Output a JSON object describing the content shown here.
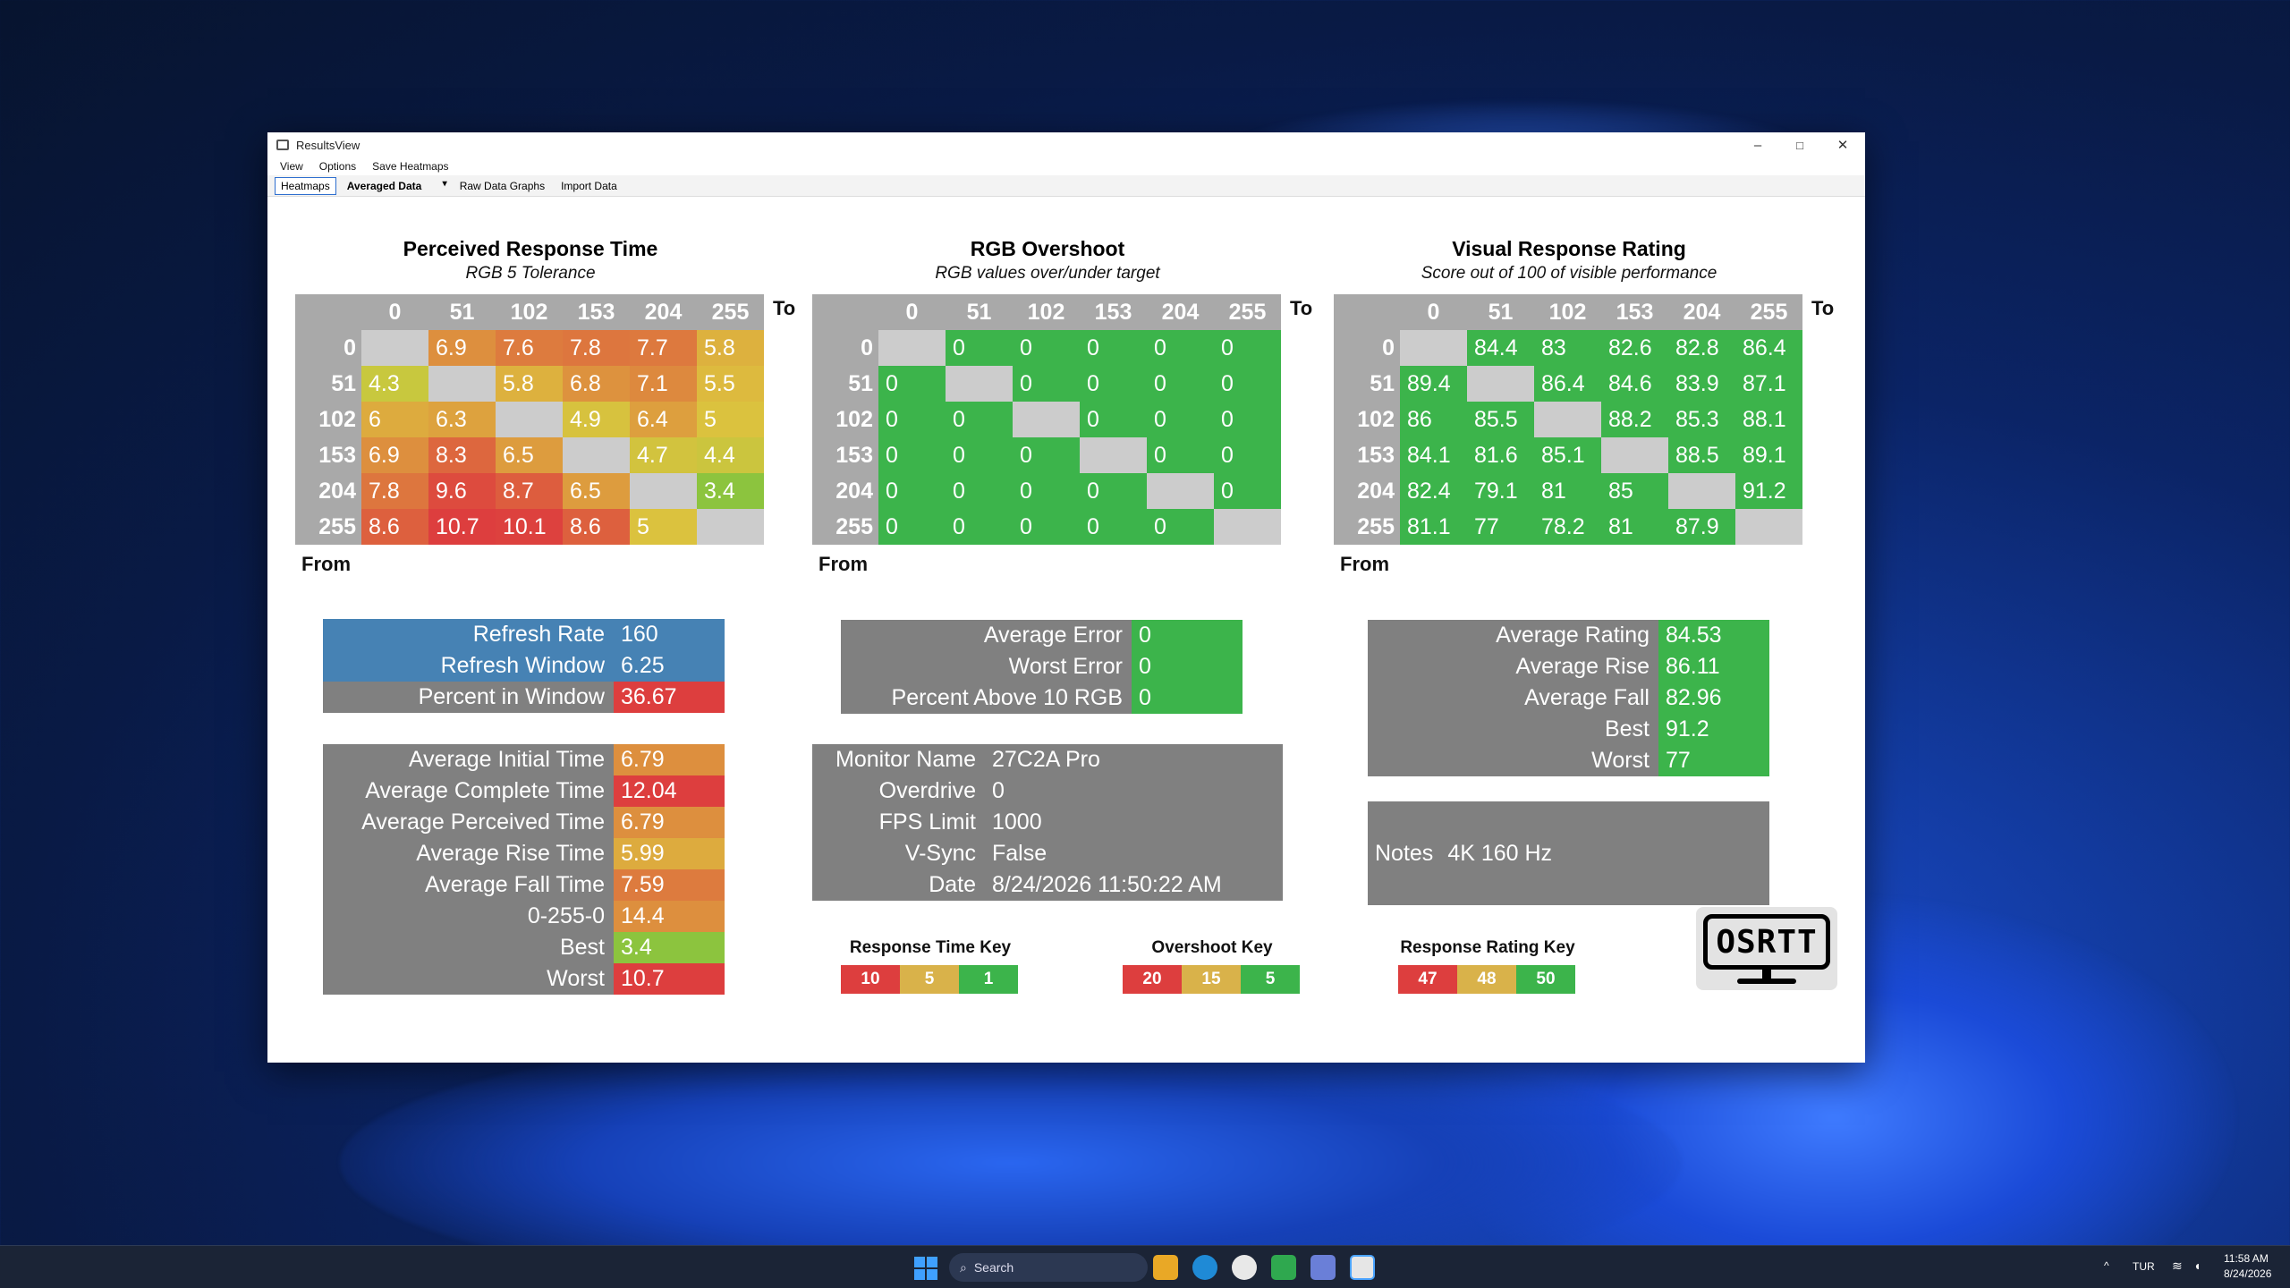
{
  "window": {
    "title": "ResultsView",
    "minimize": "–",
    "maximize": "□",
    "close": "✕"
  },
  "menu": [
    "View",
    "Options",
    "Save Heatmaps"
  ],
  "tabs": {
    "heatmaps": "Heatmaps",
    "dropdown_value": "Averaged Data",
    "raw": "Raw Data Graphs",
    "import": "Import Data"
  },
  "axis_labels": {
    "to": "To",
    "from": "From"
  },
  "heatmaps": [
    {
      "title": "Perceived Response Time",
      "subtitle": "RGB 5 Tolerance",
      "cols": [
        "0",
        "51",
        "102",
        "153",
        "204",
        "255"
      ],
      "rows": [
        {
          "label": "0",
          "cells": [
            {
              "t": "",
              "c": "#cccccc"
            },
            {
              "t": "6.9",
              "c": "#dd8f3e"
            },
            {
              "t": "7.6",
              "c": "#dd7b3e"
            },
            {
              "t": "7.8",
              "c": "#dd763e"
            },
            {
              "t": "7.7",
              "c": "#dd793e"
            },
            {
              "t": "5.8",
              "c": "#ddb13e"
            }
          ]
        },
        {
          "label": "51",
          "cells": [
            {
              "t": "4.3",
              "c": "#c8c83e"
            },
            {
              "t": "",
              "c": "#cccccc"
            },
            {
              "t": "5.8",
              "c": "#ddb13e"
            },
            {
              "t": "6.8",
              "c": "#dd923e"
            },
            {
              "t": "7.1",
              "c": "#dd893e"
            },
            {
              "t": "5.5",
              "c": "#ddba3e"
            }
          ]
        },
        {
          "label": "102",
          "cells": [
            {
              "t": "6",
              "c": "#ddab3e"
            },
            {
              "t": "6.3",
              "c": "#dda23e"
            },
            {
              "t": "",
              "c": "#cccccc"
            },
            {
              "t": "4.9",
              "c": "#d7c23e"
            },
            {
              "t": "6.4",
              "c": "#dd9f3e"
            },
            {
              "t": "5",
              "c": "#dbc23e"
            }
          ]
        },
        {
          "label": "153",
          "cells": [
            {
              "t": "6.9",
              "c": "#dd8f3e"
            },
            {
              "t": "8.3",
              "c": "#dd673e"
            },
            {
              "t": "6.5",
              "c": "#dd9c3e"
            },
            {
              "t": "",
              "c": "#cccccc"
            },
            {
              "t": "4.7",
              "c": "#d2c33e"
            },
            {
              "t": "4.4",
              "c": "#cbc53e"
            }
          ]
        },
        {
          "label": "204",
          "cells": [
            {
              "t": "7.8",
              "c": "#dd763e"
            },
            {
              "t": "9.6",
              "c": "#dd4b3e"
            },
            {
              "t": "8.7",
              "c": "#dd5d3e"
            },
            {
              "t": "6.5",
              "c": "#dd9c3e"
            },
            {
              "t": "",
              "c": "#cccccc"
            },
            {
              "t": "3.4",
              "c": "#8cc43e"
            }
          ]
        },
        {
          "label": "255",
          "cells": [
            {
              "t": "8.6",
              "c": "#dd603e"
            },
            {
              "t": "10.7",
              "c": "#dd3e3e"
            },
            {
              "t": "10.1",
              "c": "#dd413e"
            },
            {
              "t": "8.6",
              "c": "#dd603e"
            },
            {
              "t": "5",
              "c": "#dbc23e"
            },
            {
              "t": "",
              "c": "#cccccc"
            }
          ]
        }
      ]
    },
    {
      "title": "RGB Overshoot",
      "subtitle": "RGB values over/under target",
      "cols": [
        "0",
        "51",
        "102",
        "153",
        "204",
        "255"
      ],
      "rows": [
        {
          "label": "0",
          "cells": [
            {
              "t": "",
              "c": "#cccccc"
            },
            {
              "t": "0",
              "c": "#3cb44b"
            },
            {
              "t": "0",
              "c": "#3cb44b"
            },
            {
              "t": "0",
              "c": "#3cb44b"
            },
            {
              "t": "0",
              "c": "#3cb44b"
            },
            {
              "t": "0",
              "c": "#3cb44b"
            }
          ]
        },
        {
          "label": "51",
          "cells": [
            {
              "t": "0",
              "c": "#3cb44b"
            },
            {
              "t": "",
              "c": "#cccccc"
            },
            {
              "t": "0",
              "c": "#3cb44b"
            },
            {
              "t": "0",
              "c": "#3cb44b"
            },
            {
              "t": "0",
              "c": "#3cb44b"
            },
            {
              "t": "0",
              "c": "#3cb44b"
            }
          ]
        },
        {
          "label": "102",
          "cells": [
            {
              "t": "0",
              "c": "#3cb44b"
            },
            {
              "t": "0",
              "c": "#3cb44b"
            },
            {
              "t": "",
              "c": "#cccccc"
            },
            {
              "t": "0",
              "c": "#3cb44b"
            },
            {
              "t": "0",
              "c": "#3cb44b"
            },
            {
              "t": "0",
              "c": "#3cb44b"
            }
          ]
        },
        {
          "label": "153",
          "cells": [
            {
              "t": "0",
              "c": "#3cb44b"
            },
            {
              "t": "0",
              "c": "#3cb44b"
            },
            {
              "t": "0",
              "c": "#3cb44b"
            },
            {
              "t": "",
              "c": "#cccccc"
            },
            {
              "t": "0",
              "c": "#3cb44b"
            },
            {
              "t": "0",
              "c": "#3cb44b"
            }
          ]
        },
        {
          "label": "204",
          "cells": [
            {
              "t": "0",
              "c": "#3cb44b"
            },
            {
              "t": "0",
              "c": "#3cb44b"
            },
            {
              "t": "0",
              "c": "#3cb44b"
            },
            {
              "t": "0",
              "c": "#3cb44b"
            },
            {
              "t": "",
              "c": "#cccccc"
            },
            {
              "t": "0",
              "c": "#3cb44b"
            }
          ]
        },
        {
          "label": "255",
          "cells": [
            {
              "t": "0",
              "c": "#3cb44b"
            },
            {
              "t": "0",
              "c": "#3cb44b"
            },
            {
              "t": "0",
              "c": "#3cb44b"
            },
            {
              "t": "0",
              "c": "#3cb44b"
            },
            {
              "t": "0",
              "c": "#3cb44b"
            },
            {
              "t": "",
              "c": "#cccccc"
            }
          ]
        }
      ]
    },
    {
      "title": "Visual Response Rating",
      "subtitle": "Score out of 100 of visible performance",
      "cols": [
        "0",
        "51",
        "102",
        "153",
        "204",
        "255"
      ],
      "rows": [
        {
          "label": "0",
          "cells": [
            {
              "t": "",
              "c": "#cccccc"
            },
            {
              "t": "84.4",
              "c": "#3cb44b"
            },
            {
              "t": "83",
              "c": "#3cb44b"
            },
            {
              "t": "82.6",
              "c": "#3cb44b"
            },
            {
              "t": "82.8",
              "c": "#3cb44b"
            },
            {
              "t": "86.4",
              "c": "#3cb44b"
            }
          ]
        },
        {
          "label": "51",
          "cells": [
            {
              "t": "89.4",
              "c": "#3cb44b"
            },
            {
              "t": "",
              "c": "#cccccc"
            },
            {
              "t": "86.4",
              "c": "#3cb44b"
            },
            {
              "t": "84.6",
              "c": "#3cb44b"
            },
            {
              "t": "83.9",
              "c": "#3cb44b"
            },
            {
              "t": "87.1",
              "c": "#3cb44b"
            }
          ]
        },
        {
          "label": "102",
          "cells": [
            {
              "t": "86",
              "c": "#3cb44b"
            },
            {
              "t": "85.5",
              "c": "#3cb44b"
            },
            {
              "t": "",
              "c": "#cccccc"
            },
            {
              "t": "88.2",
              "c": "#3cb44b"
            },
            {
              "t": "85.3",
              "c": "#3cb44b"
            },
            {
              "t": "88.1",
              "c": "#3cb44b"
            }
          ]
        },
        {
          "label": "153",
          "cells": [
            {
              "t": "84.1",
              "c": "#3cb44b"
            },
            {
              "t": "81.6",
              "c": "#3cb44b"
            },
            {
              "t": "85.1",
              "c": "#3cb44b"
            },
            {
              "t": "",
              "c": "#cccccc"
            },
            {
              "t": "88.5",
              "c": "#3cb44b"
            },
            {
              "t": "89.1",
              "c": "#3cb44b"
            }
          ]
        },
        {
          "label": "204",
          "cells": [
            {
              "t": "82.4",
              "c": "#3cb44b"
            },
            {
              "t": "79.1",
              "c": "#3cb44b"
            },
            {
              "t": "81",
              "c": "#3cb44b"
            },
            {
              "t": "85",
              "c": "#3cb44b"
            },
            {
              "t": "",
              "c": "#cccccc"
            },
            {
              "t": "91.2",
              "c": "#3cb44b"
            }
          ]
        },
        {
          "label": "255",
          "cells": [
            {
              "t": "81.1",
              "c": "#3cb44b"
            },
            {
              "t": "77",
              "c": "#3cb44b"
            },
            {
              "t": "78.2",
              "c": "#3cb44b"
            },
            {
              "t": "81",
              "c": "#3cb44b"
            },
            {
              "t": "87.9",
              "c": "#3cb44b"
            },
            {
              "t": "",
              "c": "#cccccc"
            }
          ]
        }
      ]
    }
  ],
  "refresh_box": [
    {
      "label": "Refresh Rate",
      "value": "160",
      "lc": "#4682b4",
      "vc": "#4682b4"
    },
    {
      "label": "Refresh Window",
      "value": "6.25",
      "lc": "#4682b4",
      "vc": "#4682b4"
    },
    {
      "label": "Percent in Window",
      "value": "36.67",
      "lc": "#808080",
      "vc": "#dd3e3e"
    }
  ],
  "time_stats": [
    {
      "label": "Average Initial Time",
      "value": "6.79",
      "vc": "#dd8f3e"
    },
    {
      "label": "Average Complete Time",
      "value": "12.04",
      "vc": "#dd3e3e"
    },
    {
      "label": "Average Perceived Time",
      "value": "6.79",
      "vc": "#dd8f3e"
    },
    {
      "label": "Average Rise Time",
      "value": "5.99",
      "vc": "#ddab3e"
    },
    {
      "label": "Average Fall Time",
      "value": "7.59",
      "vc": "#dd7b3e"
    },
    {
      "label": "0-255-0",
      "value": "14.4",
      "vc": "#dd8f3e"
    },
    {
      "label": "Best",
      "value": "3.4",
      "vc": "#8cc43e"
    },
    {
      "label": "Worst",
      "value": "10.7",
      "vc": "#dd3e3e"
    }
  ],
  "overshoot_stats": [
    {
      "label": "Average Error",
      "value": "0",
      "vc": "#3cb44b"
    },
    {
      "label": "Worst Error",
      "value": "0",
      "vc": "#3cb44b"
    },
    {
      "label": "Percent Above 10 RGB",
      "value": "0",
      "vc": "#3cb44b"
    }
  ],
  "monitor_info": [
    {
      "label": "Monitor Name",
      "value": "27C2A Pro"
    },
    {
      "label": "Overdrive",
      "value": "0"
    },
    {
      "label": "FPS Limit",
      "value": "1000"
    },
    {
      "label": "V-Sync",
      "value": "False"
    },
    {
      "label": "Date",
      "value": "8/24/2026 11:50:22 AM"
    }
  ],
  "rating_stats": [
    {
      "label": "Average Rating",
      "value": "84.53"
    },
    {
      "label": "Average Rise",
      "value": "86.11"
    },
    {
      "label": "Average Fall",
      "value": "82.96"
    },
    {
      "label": "Best",
      "value": "91.2"
    },
    {
      "label": "Worst",
      "value": "77"
    }
  ],
  "notes": {
    "label": "Notes",
    "value": "4K 160 Hz"
  },
  "keys": [
    {
      "title": "Response Time Key",
      "items": [
        {
          "t": "10",
          "c": "#dd3e3e"
        },
        {
          "t": "5",
          "c": "#d9b24a"
        },
        {
          "t": "1",
          "c": "#3cb44b"
        }
      ]
    },
    {
      "title": "Overshoot Key",
      "items": [
        {
          "t": "20",
          "c": "#dd3e3e"
        },
        {
          "t": "15",
          "c": "#d9b24a"
        },
        {
          "t": "5",
          "c": "#3cb44b"
        }
      ]
    },
    {
      "title": "Response Rating Key",
      "items": [
        {
          "t": "47",
          "c": "#dd3e3e"
        },
        {
          "t": "48",
          "c": "#d9b24a"
        },
        {
          "t": "50",
          "c": "#3cb44b"
        }
      ]
    }
  ],
  "logo_text": "OSRTT",
  "taskbar": {
    "search": "Search",
    "lang": "TUR",
    "time": "11:58 AM",
    "date": "8/24/2026"
  }
}
